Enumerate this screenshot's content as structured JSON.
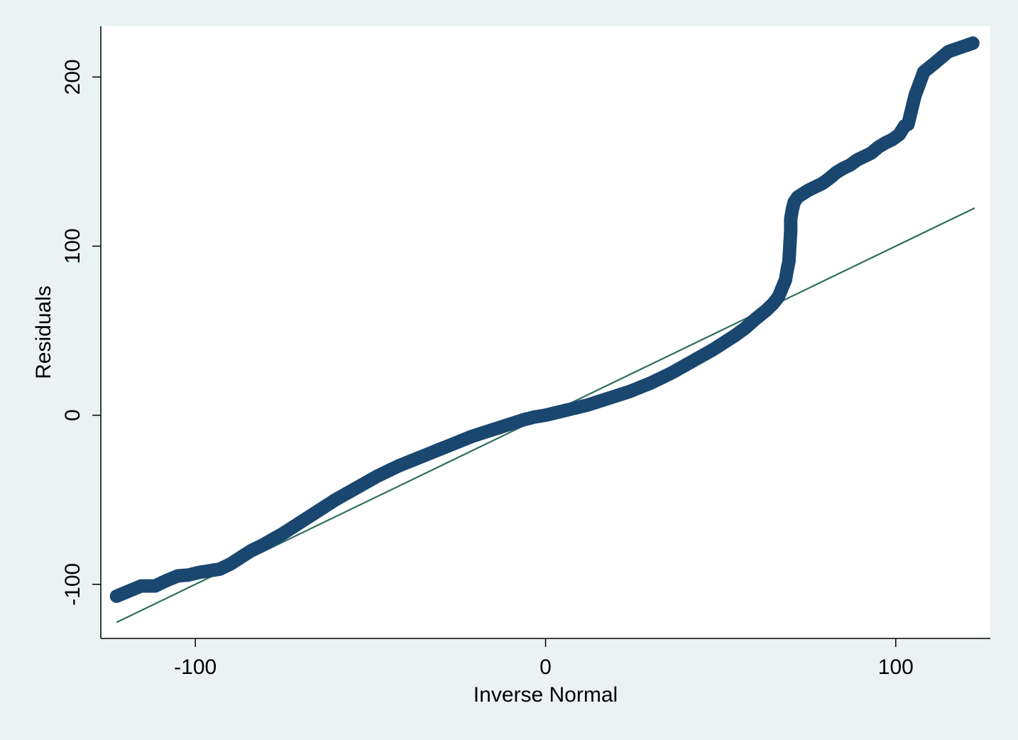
{
  "chart_data": {
    "type": "scatter",
    "xlabel": "Inverse Normal",
    "ylabel": "Residuals",
    "xlim": [
      -127,
      127
    ],
    "ylim": [
      -132,
      230
    ],
    "xticks": [
      -100,
      0,
      100
    ],
    "yticks": [
      -100,
      0,
      100,
      200
    ],
    "xtick_labels": [
      "-100",
      "0",
      "100"
    ],
    "ytick_labels": [
      "-100",
      "0",
      "100",
      "200"
    ],
    "grid": false,
    "legend": "none",
    "colors": {
      "background": "#eaf2f3",
      "plot_area": "#ffffff",
      "points": "#1a476f",
      "reference_line": "#2d6e5e"
    },
    "reference_line": {
      "x": [
        -122.5,
        122.5
      ],
      "y": [
        -122.5,
        122.5
      ]
    },
    "series": [
      {
        "x": [
          -122.5,
          -115.5,
          -111.5,
          -108.5,
          -105,
          -102,
          -99,
          -96,
          -93,
          -90,
          -87,
          -84,
          -81,
          -78,
          -75,
          -72,
          -69,
          -66,
          -63,
          -60,
          -57,
          -54,
          -51,
          -48,
          -45,
          -42,
          -39,
          -36,
          -33,
          -30,
          -27,
          -24,
          -21,
          -18,
          -15,
          -12,
          -9,
          -6,
          -3,
          0,
          3,
          6,
          9,
          12,
          15,
          18,
          21,
          24,
          27,
          30,
          33,
          36,
          39,
          42,
          45,
          48,
          51,
          54,
          57,
          60,
          63,
          65,
          66.5,
          67.5,
          68.5,
          69,
          69.5,
          70,
          70,
          70.5,
          71,
          72,
          73.5,
          75,
          77,
          79,
          81,
          83,
          85,
          87,
          89,
          91,
          93,
          95,
          97,
          99,
          101,
          102.5,
          103.5,
          105.5,
          108,
          111,
          115,
          122
        ],
        "y": [
          -107,
          -101,
          -101,
          -98,
          -95,
          -94.5,
          -93,
          -92,
          -91,
          -88,
          -84,
          -80,
          -77,
          -73.5,
          -70,
          -66,
          -62,
          -58,
          -54,
          -50,
          -46.5,
          -43,
          -39.5,
          -36,
          -33,
          -30,
          -27.5,
          -25,
          -22.5,
          -20,
          -17.5,
          -15,
          -12.5,
          -10.5,
          -8.5,
          -6.5,
          -4.5,
          -2.5,
          -1,
          0,
          1.5,
          3,
          4.5,
          6,
          8,
          10,
          12,
          14,
          16.5,
          19,
          22,
          25,
          28.5,
          32,
          35.5,
          39,
          43,
          47,
          51.5,
          57,
          62,
          66,
          70,
          75,
          80,
          86,
          91,
          109,
          116,
          122,
          126,
          129,
          131,
          133,
          135,
          137,
          140,
          143.5,
          146,
          148,
          151,
          153,
          155,
          158.5,
          161,
          163,
          166,
          171,
          172,
          189,
          203,
          208,
          215,
          220
        ]
      }
    ]
  }
}
